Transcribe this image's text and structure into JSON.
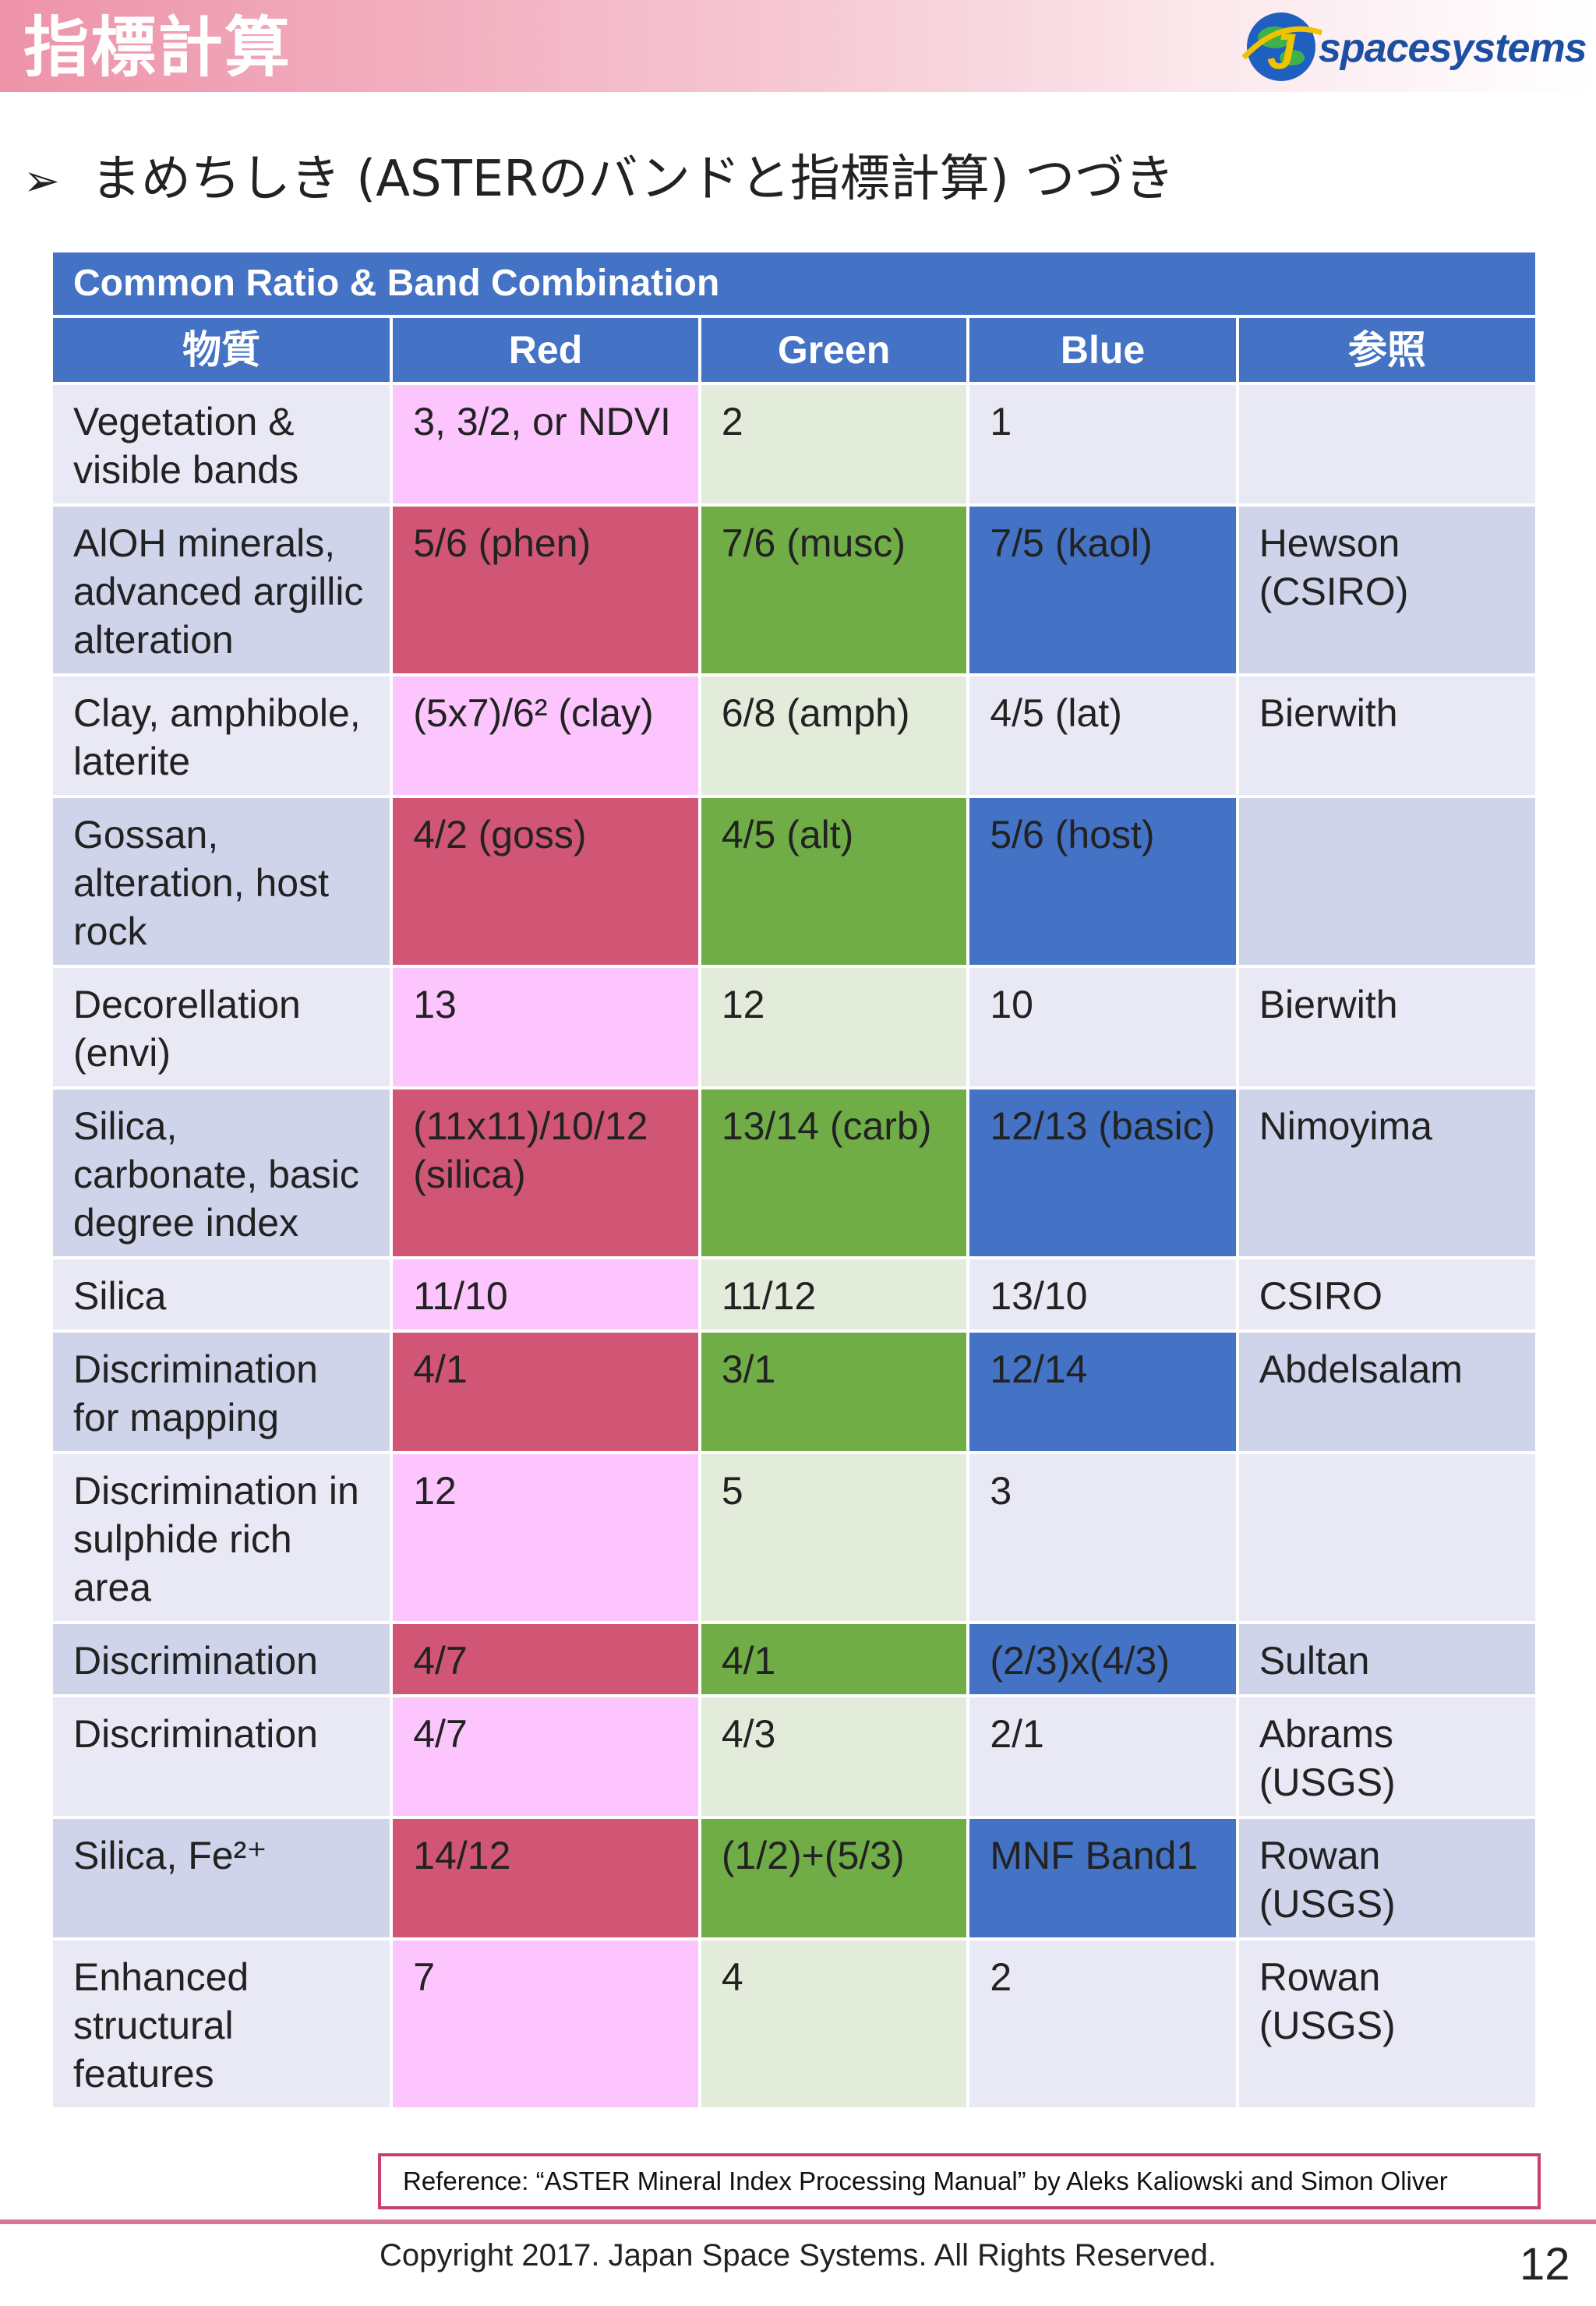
{
  "header": {
    "title": "指標計算",
    "logo_text": "spacesystems",
    "logo_letter": "J"
  },
  "subtitle": {
    "bullet": "➢",
    "text": "まめちしき (ASTERのバンドと指標計算) つづき"
  },
  "table": {
    "caption": "Common Ratio & Band Combination",
    "columns": [
      "物質",
      "Red",
      "Green",
      "Blue",
      "参照"
    ],
    "rows": [
      [
        "Vegetation & visible bands",
        "3, 3/2, or NDVI",
        "2",
        "1",
        ""
      ],
      [
        "AlOH minerals, advanced argillic alteration",
        "5/6 (phen)",
        "7/6 (musc)",
        "7/5 (kaol)",
        "Hewson (CSIRO)"
      ],
      [
        "Clay, amphibole, laterite",
        "(5x7)/6² (clay)",
        "6/8 (amph)",
        "4/5 (lat)",
        "Bierwith"
      ],
      [
        "Gossan, alteration, host rock",
        "4/2 (goss)",
        "4/5 (alt)",
        "5/6 (host)",
        ""
      ],
      [
        "Decorellation (envi)",
        "13",
        "12",
        "10",
        "Bierwith"
      ],
      [
        "Silica, carbonate, basic degree index",
        "(11x11)/10/12 (silica)",
        "13/14 (carb)",
        "12/13 (basic)",
        "Nimoyima"
      ],
      [
        "Silica",
        "11/10",
        "11/12",
        "13/10",
        "CSIRO"
      ],
      [
        "Discrimination for mapping",
        "4/1",
        "3/1",
        "12/14",
        "Abdelsalam"
      ],
      [
        "Discrimination in sulphide rich area",
        "12",
        "5",
        "3",
        ""
      ],
      [
        "Discrimination",
        "4/7",
        "4/1",
        "(2/3)x(4/3)",
        "Sultan"
      ],
      [
        "Discrimination",
        "4/7",
        "4/3",
        "2/1",
        "Abrams (USGS)"
      ],
      [
        "Silica, Fe²⁺",
        "14/12",
        "(1/2)+(5/3)",
        "MNF Band1",
        "Rowan (USGS)"
      ],
      [
        "Enhanced structural features",
        "7",
        "4",
        "2",
        "Rowan (USGS)"
      ]
    ]
  },
  "reference": "Reference: “ASTER Mineral Index Processing Manual” by Aleks Kaliowski and Simon Oliver",
  "footer": {
    "copyright": "Copyright 2017. Japan Space Systems. All Rights Reserved.",
    "page_number": "12"
  }
}
